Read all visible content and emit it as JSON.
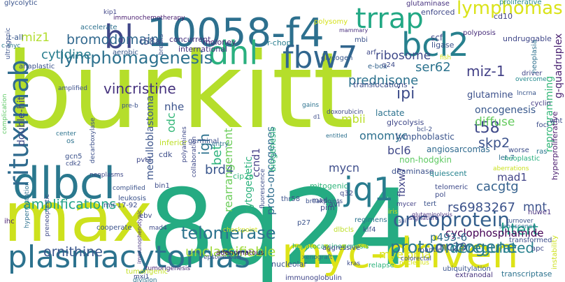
{
  "words": [
    {
      "text": "burkitt",
      "color": "#b5de2b"
    },
    {
      "text": "8q24",
      "color": "#25ab82"
    },
    {
      "text": "max",
      "color": "#cde11d"
    },
    {
      "text": "myc-driven",
      "color": "#dde318"
    },
    {
      "text": "10058-f4",
      "color": "#2d708e"
    },
    {
      "text": "dlbcl",
      "color": "#2a788e"
    },
    {
      "text": "plasmacytomas",
      "color": "#2c728e"
    },
    {
      "text": "rituximab",
      "color": "#2f6b8e"
    },
    {
      "text": "bcl2",
      "color": "#27808e"
    },
    {
      "text": "fbw7",
      "color": "#31668e"
    },
    {
      "text": "dhl",
      "color": "#2ab07f"
    },
    {
      "text": "bl",
      "color": "#3f4788"
    },
    {
      "text": "trrap",
      "color": "#22a884"
    },
    {
      "text": "jq1",
      "color": "#287c8e"
    },
    {
      "text": "lymphomas",
      "color": "#dae319"
    },
    {
      "text": "lymphomagenesis",
      "color": "#2d718e"
    },
    {
      "text": "oncoprotein",
      "color": "#35608d"
    },
    {
      "text": "myeloma",
      "color": "#d8e219"
    },
    {
      "text": "protooncogene",
      "color": "#2a788e"
    },
    {
      "text": "deregulated",
      "color": "#26818e"
    },
    {
      "text": "telomerase",
      "color": "#2c738e"
    },
    {
      "text": "vincristine",
      "color": "#46337e"
    },
    {
      "text": "rs6983267",
      "color": "#3b528b"
    },
    {
      "text": "htert",
      "color": "#1fa088"
    },
    {
      "text": "amplifications",
      "color": "#1fa187"
    },
    {
      "text": "unclassifiable",
      "color": "#a0da39"
    },
    {
      "text": "cyclophosphamide",
      "color": "#440154"
    },
    {
      "text": "ornithine",
      "color": "#39568c"
    },
    {
      "text": "bromodomain",
      "color": "#31688e"
    },
    {
      "text": "cytidine",
      "color": "#287d8e"
    },
    {
      "text": "ribosome",
      "color": "#3e4989"
    },
    {
      "text": "ser62",
      "color": "#2c738e"
    },
    {
      "text": "miz-1",
      "color": "#424086"
    },
    {
      "text": "prednisone",
      "color": "#2c728e"
    },
    {
      "text": "ipi",
      "color": "#3e4c8a"
    },
    {
      "text": "t58",
      "color": "#3e4989"
    },
    {
      "text": "skp2",
      "color": "#3b528b"
    },
    {
      "text": "oncogenesis",
      "color": "#38588c"
    },
    {
      "text": "diffuse",
      "color": "#65cb5e"
    },
    {
      "text": "mbii",
      "color": "#bade28"
    },
    {
      "text": "omomyc",
      "color": "#2d708e"
    },
    {
      "text": "bcl6",
      "color": "#3f4889"
    },
    {
      "text": "igh",
      "color": "#2d718e"
    },
    {
      "text": "bet",
      "color": "#2eb37c"
    },
    {
      "text": "brd4",
      "color": "#39568c"
    },
    {
      "text": "rearrangement",
      "color": "#6ccd5a"
    },
    {
      "text": "proto-oncogenes",
      "color": "#2e6d8e"
    },
    {
      "text": "mycn",
      "color": "#3d4d8a"
    },
    {
      "text": "cacgtg",
      "color": "#34618d"
    },
    {
      "text": "mad1",
      "color": "#414487"
    },
    {
      "text": "mnt",
      "color": "#3b528b"
    },
    {
      "text": "p493-6",
      "color": "#2f6c8e"
    },
    {
      "text": "mc29",
      "color": "#3b528b"
    },
    {
      "text": "fbxw7",
      "color": "#404387"
    },
    {
      "text": "ccnd1",
      "color": "#433e85"
    },
    {
      "text": "cytogenetic",
      "color": "#2db27d"
    },
    {
      "text": "biogenesis",
      "color": "#2fb47c"
    },
    {
      "text": "double-hit",
      "color": "#3e4a89"
    },
    {
      "text": "medulloblastoma",
      "color": "#3a538b"
    },
    {
      "text": "odc",
      "color": "#35b779"
    },
    {
      "text": "nhe",
      "color": "#3b528b"
    },
    {
      "text": "miz1",
      "color": "#b2dd2d"
    },
    {
      "text": "t-all",
      "color": "#38588c"
    },
    {
      "text": "glutamine",
      "color": "#3c508b"
    },
    {
      "text": "lymphoblastic",
      "color": "#3a548c"
    },
    {
      "text": "angiosarcomas",
      "color": "#306a8e"
    },
    {
      "text": "non-hodgkin",
      "color": "#5ec962"
    },
    {
      "text": "lactate",
      "color": "#2c728e"
    },
    {
      "text": "glycolysis",
      "color": "#3f4889"
    },
    {
      "text": "deaminase",
      "color": "#3c508b"
    },
    {
      "text": "quiescent",
      "color": "#25838e"
    },
    {
      "text": "reprogramming",
      "color": "#35b779"
    },
    {
      "text": "g-quadruplex",
      "color": "#481f70"
    },
    {
      "text": "hyperproliferative",
      "color": "#481a6c"
    },
    {
      "text": "huwe1",
      "color": "#46307e"
    },
    {
      "text": "translocations",
      "color": "#3d4e8a"
    },
    {
      "text": "t58a",
      "color": "#3c4f8a"
    },
    {
      "text": "concurrent",
      "color": "#46327e"
    },
    {
      "text": "international",
      "color": "#45337d"
    },
    {
      "text": "moloney",
      "color": "#482475"
    },
    {
      "text": "r-chop",
      "color": "#287d8e"
    },
    {
      "text": "scf",
      "color": "#3f4788"
    },
    {
      "text": "ligase",
      "color": "#3b528b"
    },
    {
      "text": "polyposis",
      "color": "#472c7a"
    },
    {
      "text": "cd10",
      "color": "#424086"
    },
    {
      "text": "undruggable",
      "color": "#3f4788"
    },
    {
      "text": "proliferative",
      "color": "#238a8d"
    },
    {
      "text": "enforced",
      "color": "#3f4788"
    },
    {
      "text": "glutaminase",
      "color": "#46327e"
    },
    {
      "text": "glycolytic",
      "color": "#3a548c"
    },
    {
      "text": "immunochemotherapy",
      "color": "#481c6e"
    },
    {
      "text": "accelerate",
      "color": "#2d718e"
    },
    {
      "text": "c-myc",
      "color": "#2a788e"
    },
    {
      "text": "kip1",
      "color": "#404688"
    },
    {
      "text": "polysomy",
      "color": "#d5e21a"
    },
    {
      "text": "mammary",
      "color": "#472d7b"
    },
    {
      "text": "mbi",
      "color": "#3b528b"
    },
    {
      "text": "glycogen",
      "color": "#38588c"
    },
    {
      "text": "e-box",
      "color": "#33638d"
    },
    {
      "text": "arf",
      "color": "#3e4989"
    },
    {
      "text": "q24",
      "color": "#3e4c8a"
    },
    {
      "text": "fish",
      "color": "#d0e11c"
    },
    {
      "text": "driver",
      "color": "#404588"
    },
    {
      "text": "overcome",
      "color": "#23898e"
    },
    {
      "text": "neoplasia",
      "color": "#2d708e"
    },
    {
      "text": "lncrna",
      "color": "#39558c"
    },
    {
      "text": "cyclin",
      "color": "#443a83"
    },
    {
      "text": "foci",
      "color": "#3d4d8a"
    },
    {
      "text": "wnt",
      "color": "#3d4d8a"
    },
    {
      "text": "ras",
      "color": "#2a788e"
    },
    {
      "text": "neoplastic",
      "color": "#2ab07f"
    },
    {
      "text": "worse",
      "color": "#3c4f8a"
    },
    {
      "text": "let-7",
      "color": "#2e6e8e"
    },
    {
      "text": "aberrations",
      "color": "#cae11f"
    },
    {
      "text": "telomeric",
      "color": "#3e4a89"
    },
    {
      "text": "pol",
      "color": "#3e4c8a"
    },
    {
      "text": "tert",
      "color": "#3b528b"
    },
    {
      "text": "signature",
      "color": "#46337f"
    },
    {
      "text": "turnover",
      "color": "#3b528b"
    },
    {
      "text": "senescence",
      "color": "#2f6c8e"
    },
    {
      "text": "mycer",
      "color": "#424186"
    },
    {
      "text": "iris",
      "color": "#d8e219"
    },
    {
      "text": "glutaminolysis",
      "color": "#472f7d"
    },
    {
      "text": "transformed",
      "color": "#3d4d8a"
    },
    {
      "text": "avl",
      "color": "#3e4989"
    },
    {
      "text": "mad",
      "color": "#3e4a89"
    },
    {
      "text": "q32",
      "color": "#3e4989"
    },
    {
      "text": "thr58",
      "color": "#3b528b"
    },
    {
      "text": "mitogenic",
      "color": "#31b57b"
    },
    {
      "text": "breakpoints",
      "color": "#3c508b"
    },
    {
      "text": "pim",
      "color": "#3e4989"
    },
    {
      "text": "p27",
      "color": "#3b528b"
    },
    {
      "text": "regimens",
      "color": "#2c738e"
    },
    {
      "text": "dlbcls",
      "color": "#bddf26"
    },
    {
      "text": "klf4",
      "color": "#3c4f8a"
    },
    {
      "text": "hepatocarcinogenesis",
      "color": "#2eb37c"
    },
    {
      "text": "mantle",
      "color": "#3d4d8a"
    },
    {
      "text": "nucleolus",
      "color": "#d5e21a"
    },
    {
      "text": "apc",
      "color": "#3e4a89"
    },
    {
      "text": "instability",
      "color": "#cde11d"
    },
    {
      "text": "transcriptase",
      "color": "#2c728e"
    },
    {
      "text": "extranodal",
      "color": "#46327e"
    },
    {
      "text": "ubiquitylation",
      "color": "#3a548c"
    },
    {
      "text": "colorectal",
      "color": "#3d4d8a"
    },
    {
      "text": "relapse",
      "color": "#2eb37c"
    },
    {
      "text": "kras",
      "color": "#3d4d8a"
    },
    {
      "text": "xenograft",
      "color": "#2e6e8e"
    },
    {
      "text": "nucleolar",
      "color": "#3a548c"
    },
    {
      "text": "immunoglobulin",
      "color": "#404588"
    },
    {
      "text": "aggressive",
      "color": "#3f4889"
    },
    {
      "text": "adenomatous",
      "color": "#440154"
    },
    {
      "text": "epstein-barr",
      "color": "#3b528b"
    },
    {
      "text": "tumorigenesis",
      "color": "#482475"
    },
    {
      "text": "checkpoint",
      "color": "#d0e11c"
    },
    {
      "text": "mxi1",
      "color": "#3e4a89"
    },
    {
      "text": "tumorigenic",
      "color": "#c2df23"
    },
    {
      "text": "division",
      "color": "#2c738e"
    },
    {
      "text": "immunophenotypic",
      "color": "#46337f"
    },
    {
      "text": "cooperate",
      "color": "#3b528b"
    },
    {
      "text": "preneoplastic",
      "color": "#3e4989"
    },
    {
      "text": "ihc",
      "color": "#481f70"
    },
    {
      "text": "mir-17-92",
      "color": "#3d4e8a"
    },
    {
      "text": "mad4",
      "color": "#3e4a89"
    },
    {
      "text": "ebv",
      "color": "#3e4a89"
    },
    {
      "text": "leukosis",
      "color": "#3b528b"
    },
    {
      "text": "complified",
      "color": "#3b528b"
    },
    {
      "text": "fluorescence",
      "color": "#3d4e8a"
    },
    {
      "text": "cip2a",
      "color": "#2fb47c"
    },
    {
      "text": "bin1",
      "color": "#3e4c8a"
    },
    {
      "text": "pvt1",
      "color": "#3f4889"
    },
    {
      "text": "germinal",
      "color": "#3d4d8a"
    },
    {
      "text": "collaboration",
      "color": "#3e4989"
    },
    {
      "text": "entry",
      "color": "#2d708e"
    },
    {
      "text": "gcn5",
      "color": "#3b528b"
    },
    {
      "text": "cdk2",
      "color": "#3d4e8a"
    },
    {
      "text": "neoplasms",
      "color": "#3e4989"
    },
    {
      "text": "hypermutation",
      "color": "#2d718e"
    },
    {
      "text": "anaplastic",
      "color": "#3b528b"
    },
    {
      "text": "aerobic",
      "color": "#38588c"
    },
    {
      "text": "inferior",
      "color": "#bddf26"
    },
    {
      "text": "os",
      "color": "#2c728e"
    },
    {
      "text": "center",
      "color": "#2c738e"
    },
    {
      "text": "cdk",
      "color": "#3d4e8a"
    },
    {
      "text": "decarboxylase",
      "color": "#3c508b"
    },
    {
      "text": "polyamines",
      "color": "#3e4989"
    },
    {
      "text": "complication",
      "color": "#5cc863"
    },
    {
      "text": "ultragenic",
      "color": "#3b528b"
    },
    {
      "text": "amplified",
      "color": "#3c508b"
    },
    {
      "text": "pre-b",
      "color": "#3b528b"
    },
    {
      "text": "breaks",
      "color": "#3c508b"
    },
    {
      "text": "gains",
      "color": "#2c728e"
    },
    {
      "text": "d1",
      "color": "#3d4d8a"
    },
    {
      "text": "doxorubicin",
      "color": "#3e4989"
    },
    {
      "text": "entitled",
      "color": "#2d708e"
    },
    {
      "text": "bcl-2",
      "color": "#3c4f8a"
    },
    {
      "text": "ssi7",
      "color": "#3f4889"
    }
  ]
}
